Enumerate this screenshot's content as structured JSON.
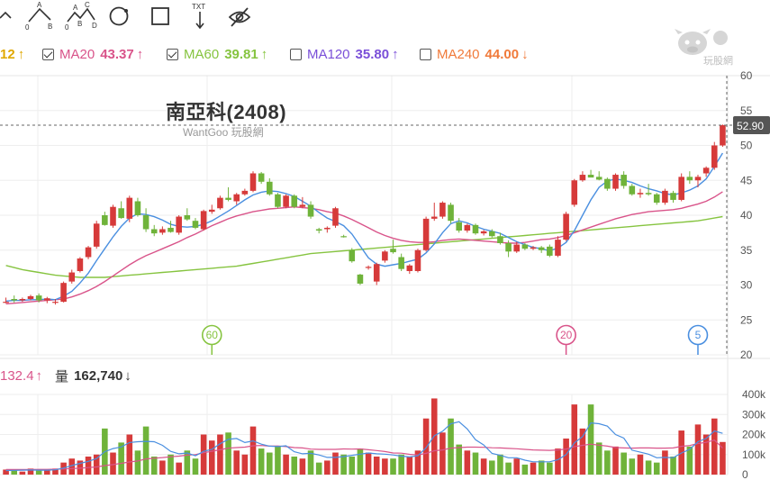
{
  "toolbar": {
    "tools": [
      {
        "name": "line-tool-icon"
      },
      {
        "name": "two-point-tool-icon",
        "labels": [
          "A",
          "0",
          "B"
        ]
      },
      {
        "name": "abcd-pattern-tool-icon",
        "labels": [
          "A",
          "C",
          "0",
          "B",
          "D"
        ]
      },
      {
        "name": "circle-tool-icon"
      },
      {
        "name": "rectangle-tool-icon"
      },
      {
        "name": "text-tool-icon",
        "label": "TXT"
      },
      {
        "name": "hide-drawings-icon"
      }
    ]
  },
  "legend": {
    "items": [
      {
        "name": "",
        "value": "12",
        "arrow": "↑",
        "color": "#e0a800",
        "checked": null
      },
      {
        "name": "MA20",
        "value": "43.37",
        "arrow": "↑",
        "color": "#d9548a",
        "checked": true
      },
      {
        "name": "MA60",
        "value": "39.81",
        "arrow": "↑",
        "color": "#86c440",
        "checked": true
      },
      {
        "name": "MA120",
        "value": "35.80",
        "arrow": "↑",
        "color": "#7a4fd8",
        "checked": false
      },
      {
        "name": "MA240",
        "value": "44.00",
        "arrow": "↓",
        "color": "#f07a3a",
        "checked": false
      }
    ]
  },
  "watermark": {
    "text": "玩股網"
  },
  "stock": {
    "title": "南亞科(2408)",
    "subtitle": "WantGoo 玩股網"
  },
  "price_label": "52.90",
  "markers": [
    {
      "label": "60",
      "color": "#86c440"
    },
    {
      "label": "20",
      "color": "#d9548a"
    },
    {
      "label": "5",
      "color": "#4a8fe0"
    }
  ],
  "volume_legend": {
    "ma_value": "132.4",
    "ma_arrow": "↑",
    "ma_color": "#d9548a",
    "label": "量",
    "value": "162,740",
    "arrow": "↓"
  },
  "colors": {
    "up": "#d63a3a",
    "down": "#6fb33a",
    "ma5": "#4a8fe0",
    "ma20": "#d9548a",
    "ma60": "#86c440"
  },
  "chart_data": {
    "type": "candlestick",
    "price_axis": {
      "ticks": [
        20,
        25,
        30,
        35,
        40,
        45,
        50,
        55,
        60
      ],
      "range": [
        20,
        60
      ]
    },
    "volume_axis": {
      "ticks": [
        "0",
        "100k",
        "200k",
        "300k",
        "400k"
      ],
      "range": [
        0,
        400000
      ]
    },
    "candles": [
      [
        27.5,
        28.2,
        27.4,
        27.6
      ],
      [
        28.0,
        28.5,
        27.5,
        27.8
      ],
      [
        27.8,
        28.2,
        27.6,
        28.0
      ],
      [
        28.0,
        28.6,
        27.8,
        28.4
      ],
      [
        28.5,
        28.8,
        27.5,
        27.8
      ],
      [
        27.8,
        28.3,
        27.4,
        28.1
      ],
      [
        27.5,
        28.0,
        27.2,
        27.6
      ],
      [
        27.6,
        30.5,
        27.5,
        30.3
      ],
      [
        30.5,
        32.2,
        30.2,
        31.8
      ],
      [
        32.0,
        34.0,
        31.8,
        33.8
      ],
      [
        34.0,
        35.6,
        33.7,
        35.4
      ],
      [
        35.5,
        39.2,
        35.2,
        38.8
      ],
      [
        40.0,
        40.5,
        38.5,
        38.6
      ],
      [
        38.5,
        41.5,
        38.2,
        41.2
      ],
      [
        41.0,
        42.0,
        39.5,
        39.6
      ],
      [
        39.5,
        42.8,
        39.0,
        42.5
      ],
      [
        42.0,
        42.5,
        39.8,
        40.0
      ],
      [
        40.0,
        41.0,
        37.6,
        38.0
      ],
      [
        38.0,
        38.6,
        37.0,
        37.4
      ],
      [
        37.5,
        38.4,
        37.2,
        38.0
      ],
      [
        38.2,
        39.2,
        37.5,
        37.6
      ],
      [
        37.5,
        40.0,
        37.2,
        39.8
      ],
      [
        40.0,
        41.0,
        39.2,
        39.4
      ],
      [
        39.2,
        39.6,
        38.0,
        38.2
      ],
      [
        38.0,
        40.8,
        37.8,
        40.6
      ],
      [
        40.5,
        41.5,
        40.2,
        40.8
      ],
      [
        41.0,
        42.8,
        40.8,
        42.5
      ],
      [
        42.5,
        44.0,
        42.0,
        42.2
      ],
      [
        42.0,
        43.2,
        41.5,
        43.0
      ],
      [
        43.0,
        43.8,
        42.8,
        43.5
      ],
      [
        43.5,
        46.3,
        43.3,
        46.0
      ],
      [
        46.0,
        46.2,
        44.5,
        44.8
      ],
      [
        44.8,
        45.3,
        42.8,
        43.0
      ],
      [
        43.0,
        43.2,
        41.0,
        41.2
      ],
      [
        41.2,
        43.0,
        41.0,
        42.8
      ],
      [
        42.8,
        43.0,
        41.0,
        41.2
      ],
      [
        41.2,
        42.6,
        41.0,
        41.5
      ],
      [
        41.5,
        42.0,
        39.5,
        39.8
      ],
      [
        38.0,
        38.2,
        37.4,
        37.8
      ],
      [
        38.0,
        38.4,
        37.5,
        38.2
      ],
      [
        38.5,
        41.2,
        38.2,
        41.0
      ],
      [
        37.0,
        37.2,
        36.8,
        36.9
      ],
      [
        35.0,
        35.3,
        33.2,
        33.4
      ],
      [
        31.5,
        31.6,
        30.0,
        30.2
      ],
      [
        32.5,
        32.8,
        32.2,
        32.6
      ],
      [
        30.5,
        33.2,
        30.0,
        33.0
      ],
      [
        33.5,
        35.0,
        33.2,
        34.8
      ],
      [
        35.2,
        36.5,
        34.5,
        34.7
      ],
      [
        34.0,
        34.5,
        32.0,
        32.3
      ],
      [
        32.0,
        33.0,
        31.6,
        32.8
      ],
      [
        32.0,
        35.2,
        31.8,
        35.0
      ],
      [
        35.0,
        39.8,
        34.8,
        39.5
      ],
      [
        39.5,
        41.8,
        39.2,
        39.8
      ],
      [
        39.8,
        42.0,
        39.5,
        41.8
      ],
      [
        41.5,
        41.8,
        38.8,
        39.2
      ],
      [
        39.0,
        39.6,
        37.5,
        37.8
      ],
      [
        37.8,
        38.8,
        37.5,
        38.6
      ],
      [
        38.6,
        38.8,
        37.2,
        37.4
      ],
      [
        37.4,
        37.9,
        37.1,
        37.7
      ],
      [
        37.7,
        38.0,
        36.8,
        37.0
      ],
      [
        37.0,
        37.5,
        35.8,
        36.0
      ],
      [
        36.0,
        36.4,
        34.0,
        34.8
      ],
      [
        34.8,
        36.2,
        34.6,
        35.8
      ],
      [
        35.8,
        36.0,
        35.0,
        35.2
      ],
      [
        35.2,
        35.6,
        35.0,
        35.4
      ],
      [
        35.4,
        35.6,
        34.6,
        35.0
      ],
      [
        35.5,
        35.8,
        34.0,
        34.2
      ],
      [
        34.2,
        37.0,
        34.0,
        36.5
      ],
      [
        36.5,
        40.5,
        36.3,
        40.2
      ],
      [
        41.5,
        45.2,
        41.2,
        45.0
      ],
      [
        45.0,
        46.3,
        44.8,
        45.8
      ],
      [
        45.8,
        46.5,
        45.5,
        45.4
      ],
      [
        45.5,
        46.3,
        45.0,
        45.1
      ],
      [
        45.2,
        45.4,
        43.5,
        43.8
      ],
      [
        43.8,
        46.0,
        43.5,
        45.8
      ],
      [
        45.8,
        46.3,
        43.8,
        44.2
      ],
      [
        44.2,
        44.5,
        42.8,
        43.0
      ],
      [
        43.0,
        43.8,
        42.5,
        43.2
      ],
      [
        43.2,
        44.5,
        42.8,
        43.0
      ],
      [
        43.0,
        43.2,
        41.5,
        41.8
      ],
      [
        41.8,
        43.8,
        41.5,
        43.5
      ],
      [
        43.2,
        43.5,
        41.8,
        42.2
      ],
      [
        42.2,
        46.0,
        42.0,
        45.5
      ],
      [
        45.5,
        46.3,
        44.5,
        45.0
      ],
      [
        45.0,
        45.8,
        44.0,
        45.5
      ],
      [
        46.0,
        47.0,
        45.5,
        46.8
      ],
      [
        46.8,
        50.5,
        46.5,
        50.0
      ],
      [
        50.0,
        53.0,
        49.8,
        52.9
      ]
    ],
    "volume": [
      25000,
      20000,
      15000,
      30000,
      20000,
      25000,
      30000,
      60000,
      80000,
      70000,
      90000,
      100000,
      230000,
      110000,
      160000,
      200000,
      120000,
      240000,
      90000,
      70000,
      100000,
      60000,
      120000,
      80000,
      200000,
      170000,
      200000,
      210000,
      120000,
      100000,
      240000,
      130000,
      110000,
      140000,
      100000,
      90000,
      80000,
      120000,
      60000,
      70000,
      110000,
      100000,
      90000,
      130000,
      110000,
      90000,
      80000,
      80000,
      100000,
      90000,
      120000,
      280000,
      380000,
      210000,
      280000,
      150000,
      120000,
      110000,
      80000,
      70000,
      100000,
      60000,
      80000,
      50000,
      60000,
      70000,
      60000,
      130000,
      180000,
      350000,
      230000,
      350000,
      160000,
      120000,
      140000,
      110000,
      80000,
      100000,
      70000,
      60000,
      120000,
      90000,
      220000,
      140000,
      250000,
      200000,
      280000,
      162740
    ],
    "ma5": [
      27.7,
      27.8,
      27.8,
      27.9,
      27.9,
      28.0,
      27.9,
      28.4,
      29.1,
      30.3,
      31.7,
      33.5,
      35.2,
      36.9,
      38.4,
      39.6,
      40.2,
      40.1,
      39.8,
      39.3,
      38.7,
      38.4,
      38.3,
      38.4,
      38.7,
      39.2,
      39.9,
      40.6,
      41.4,
      42.2,
      42.9,
      43.3,
      43.5,
      43.4,
      43.1,
      42.7,
      42.0,
      41.3,
      40.4,
      39.6,
      39.1,
      38.5,
      37.3,
      35.6,
      33.9,
      33.0,
      32.7,
      32.9,
      33.1,
      33.4,
      33.7,
      34.6,
      35.9,
      37.5,
      38.8,
      39.2,
      38.9,
      38.4,
      38.0,
      37.7,
      37.4,
      36.8,
      36.2,
      35.8,
      35.4,
      35.2,
      34.9,
      35.3,
      36.1,
      37.8,
      40.0,
      42.2,
      44.0,
      44.9,
      45.2,
      45.0,
      44.7,
      44.2,
      43.8,
      43.5,
      43.1,
      42.9,
      43.2,
      43.6,
      44.2,
      45.2,
      47.0,
      48.9
    ],
    "ma20": [
      27.3,
      27.4,
      27.5,
      27.6,
      27.7,
      27.8,
      27.9,
      28.0,
      28.3,
      28.7,
      29.2,
      29.8,
      30.5,
      31.3,
      32.1,
      32.9,
      33.6,
      34.2,
      34.7,
      35.2,
      35.7,
      36.2,
      36.8,
      37.3,
      37.9,
      38.5,
      39.0,
      39.5,
      39.9,
      40.2,
      40.5,
      40.7,
      40.9,
      41.0,
      41.1,
      41.2,
      41.1,
      41.0,
      40.8,
      40.5,
      40.3,
      39.9,
      39.4,
      38.8,
      38.2,
      37.6,
      37.1,
      36.7,
      36.4,
      36.2,
      36.1,
      36.1,
      36.2,
      36.4,
      36.5,
      36.6,
      36.5,
      36.4,
      36.3,
      36.2,
      36.1,
      36.0,
      36.0,
      36.1,
      36.3,
      36.5,
      36.6,
      36.8,
      37.1,
      37.5,
      37.9,
      38.3,
      38.7,
      39.1,
      39.5,
      39.8,
      40.1,
      40.3,
      40.5,
      40.6,
      40.7,
      40.8,
      41.0,
      41.3,
      41.6,
      42.0,
      42.6,
      43.37
    ],
    "ma60": [
      32.8,
      32.5,
      32.2,
      32.0,
      31.8,
      31.6,
      31.4,
      31.3,
      31.2,
      31.1,
      31.1,
      31.1,
      31.1,
      31.2,
      31.3,
      31.4,
      31.5,
      31.6,
      31.7,
      31.8,
      31.9,
      32.0,
      32.1,
      32.2,
      32.3,
      32.4,
      32.5,
      32.6,
      32.7,
      32.9,
      33.1,
      33.3,
      33.5,
      33.7,
      33.9,
      34.1,
      34.3,
      34.5,
      34.6,
      34.7,
      34.8,
      34.9,
      35.0,
      35.1,
      35.2,
      35.3,
      35.4,
      35.5,
      35.6,
      35.7,
      35.8,
      35.9,
      36.0,
      36.1,
      36.2,
      36.3,
      36.4,
      36.5,
      36.6,
      36.7,
      36.8,
      36.9,
      37.0,
      37.1,
      37.2,
      37.3,
      37.4,
      37.5,
      37.6,
      37.7,
      37.8,
      37.9,
      38.0,
      38.1,
      38.2,
      38.3,
      38.4,
      38.5,
      38.6,
      38.7,
      38.8,
      38.9,
      39.0,
      39.1,
      39.2,
      39.4,
      39.6,
      39.81
    ],
    "vol_ma5": [
      20000,
      21000,
      22000,
      23000,
      22000,
      22000,
      24000,
      33000,
      45000,
      56000,
      66000,
      80000,
      114000,
      130000,
      138000,
      160000,
      164000,
      166000,
      164000,
      146000,
      116000,
      104000,
      108000,
      94000,
      116000,
      126000,
      154000,
      176000,
      180000,
      160000,
      168000,
      152000,
      142000,
      140000,
      144000,
      114000,
      104000,
      106000,
      98000,
      86000,
      86000,
      90000,
      96000,
      102000,
      108000,
      104000,
      102000,
      98000,
      92000,
      88000,
      94000,
      134000,
      194000,
      216000,
      254000,
      264000,
      228000,
      174000,
      148000,
      106000,
      96000,
      84000,
      84000,
      72000,
      64000,
      64000,
      64000,
      74000,
      100000,
      158000,
      190000,
      258000,
      254000,
      242000,
      200000,
      182000,
      122000,
      112000,
      102000,
      84000,
      86000,
      84000,
      108000,
      126000,
      164000,
      180000,
      218000,
      206000
    ],
    "vol_ma20": [
      25000,
      25000,
      25000,
      25000,
      26000,
      26000,
      27000,
      28000,
      30000,
      32000,
      35000,
      38000,
      45000,
      50000,
      56000,
      63000,
      68000,
      78000,
      82000,
      85000,
      89000,
      92000,
      97000,
      100000,
      109000,
      116000,
      124000,
      132000,
      135000,
      137000,
      144000,
      145000,
      142000,
      143000,
      140000,
      135000,
      133000,
      127000,
      126000,
      126000,
      126000,
      128000,
      127000,
      128000,
      124000,
      120000,
      115000,
      108000,
      107000,
      101000,
      98000,
      106000,
      119000,
      123000,
      132000,
      135000,
      137000,
      137000,
      136000,
      134000,
      133000,
      131000,
      129000,
      126000,
      123000,
      122000,
      121000,
      123000,
      127000,
      140000,
      146000,
      152000,
      147000,
      142000,
      135000,
      133000,
      132000,
      133000,
      133000,
      132000,
      132000,
      133000,
      141000,
      145000,
      155000,
      161000,
      172000,
      132400
    ]
  }
}
